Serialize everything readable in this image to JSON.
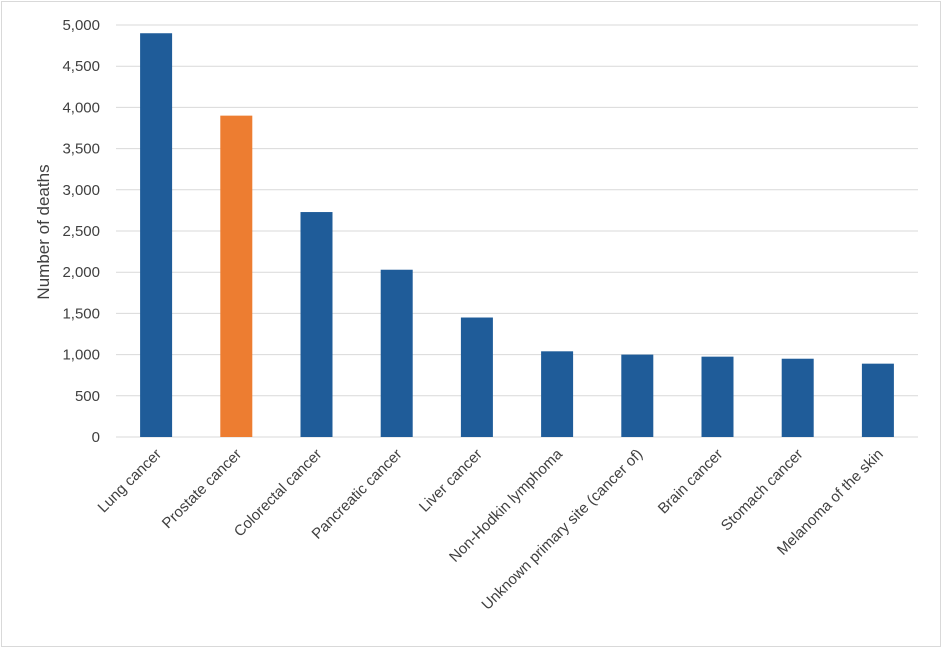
{
  "chart_data": {
    "type": "bar",
    "title": "",
    "xlabel": "",
    "ylabel": "Number of deaths",
    "ylim": [
      0,
      5000
    ],
    "ytick_step": 500,
    "yticks": [
      "0",
      "500",
      "1,000",
      "1,500",
      "2,000",
      "2,500",
      "3,000",
      "3,500",
      "4,000",
      "4,500",
      "5,000"
    ],
    "grid": true,
    "legend": "none",
    "categories": [
      "Lung cancer",
      "Prostate cancer",
      "Colorectal cancer",
      "Pancreatic cancer",
      "Liver cancer",
      "Non-Hodkin lymphoma",
      "Unknown primary site (cancer of)",
      "Brain cancer",
      "Stomach cancer",
      "Melanoma of the skin"
    ],
    "values": [
      4900,
      3900,
      2730,
      2030,
      1450,
      1040,
      1000,
      975,
      950,
      890
    ],
    "colors": {
      "default_bar": "#1f5c99",
      "highlight_bar": "#ed7d31",
      "gridline": "#d9d9d9",
      "axis_text": "#404040"
    },
    "highlight_index": 1
  }
}
